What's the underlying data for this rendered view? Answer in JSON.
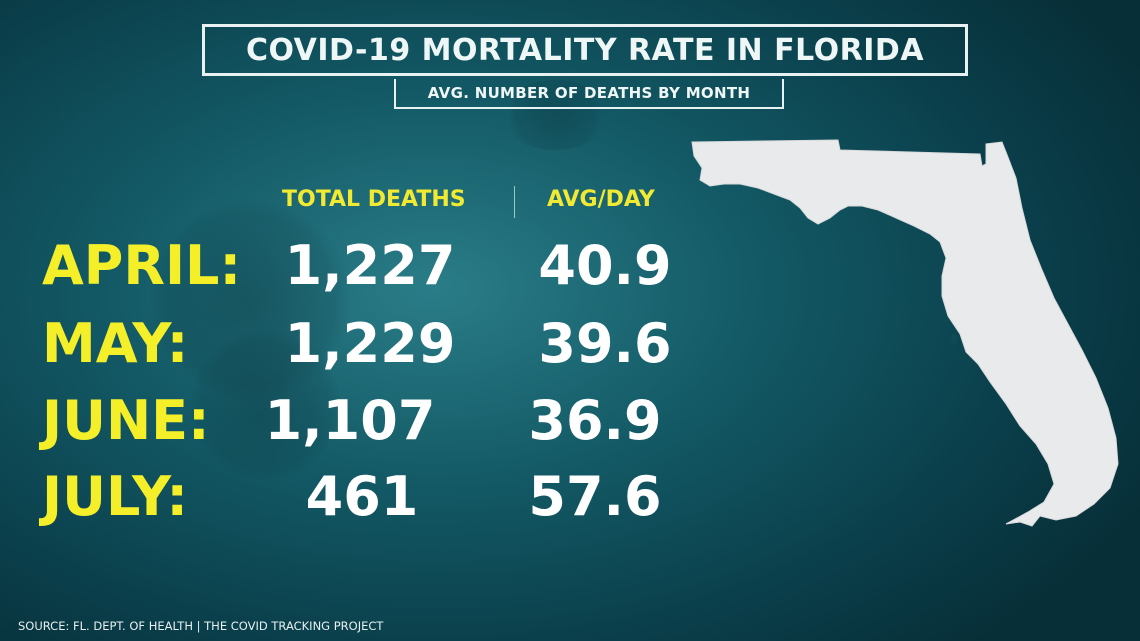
{
  "title": "COVID-19 MORTALITY RATE IN FLORIDA",
  "subtitle": "AVG. NUMBER OF DEATHS BY MONTH",
  "headers": {
    "total": "TOTAL DEATHS",
    "avg": "AVG/DAY"
  },
  "rows": [
    {
      "month": "APRIL:",
      "total": "1,227",
      "avg": "40.9"
    },
    {
      "month": "MAY:",
      "total": "1,229",
      "avg": "39.6"
    },
    {
      "month": "JUNE:",
      "total": "1,107",
      "avg": "36.9"
    },
    {
      "month": "JULY:",
      "total": "461",
      "avg": "57.6"
    }
  ],
  "source": "SOURCE: FL. DEPT. OF HEALTH | THE COVID TRACKING PROJECT",
  "colors": {
    "accent_yellow": "#f5ef2a",
    "text_white": "#ffffff",
    "map_fill": "#e9eaeb"
  },
  "icons": {
    "map": "florida-map-icon"
  }
}
